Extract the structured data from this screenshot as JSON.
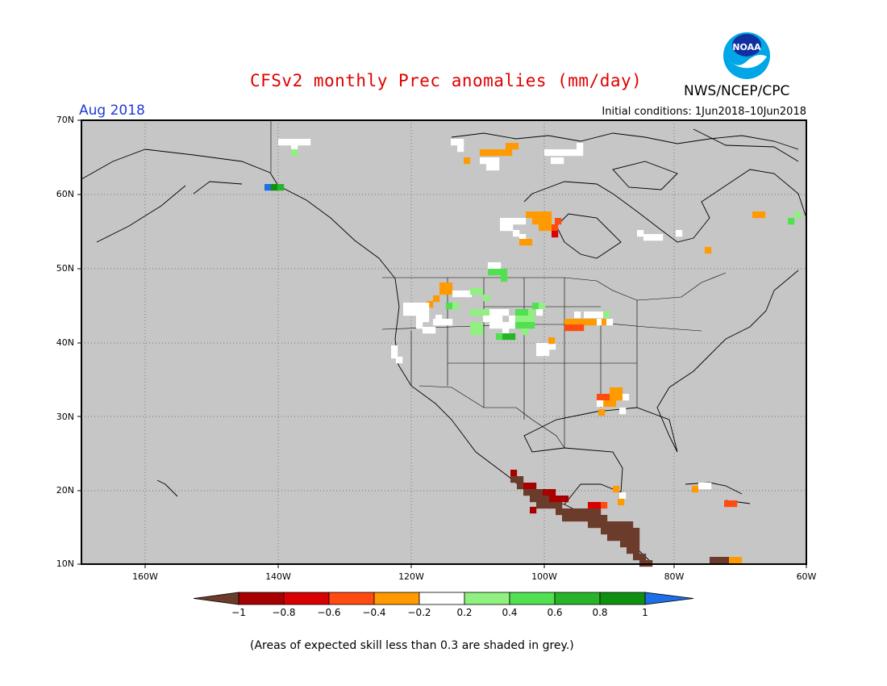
{
  "title": "CFSv2 monthly Prec anomalies (mm/day)",
  "agency": "NWS/NCEP/CPC",
  "logo_text": "NOAA",
  "forecast_month": "Aug 2018",
  "initial_conditions": "Initial conditions: 1Jun2018–10Jun2018",
  "footnote": "(Areas of expected skill less than 0.3 are shaded in grey.)",
  "lat_labels": [
    "70N",
    "60N",
    "50N",
    "40N",
    "30N",
    "20N",
    "10N"
  ],
  "lon_labels": [
    "160W",
    "140W",
    "120W",
    "100W",
    "80W",
    "60W"
  ],
  "colorbar": {
    "ticks": [
      "−1",
      "−0.8",
      "−0.6",
      "−0.4",
      "−0.2",
      "0.2",
      "0.4",
      "0.6",
      "0.8",
      "1"
    ],
    "colors": [
      "#6b3c2c",
      "#a80000",
      "#d80000",
      "#ff4a10",
      "#ff9a00",
      "#ffffff",
      "#90f080",
      "#50e050",
      "#28b428",
      "#109010",
      "#1e6ee6"
    ]
  },
  "colors": {
    "no_skill": "#c6c6c6",
    "title": "#e00000",
    "month": "#1f3ad9"
  }
}
